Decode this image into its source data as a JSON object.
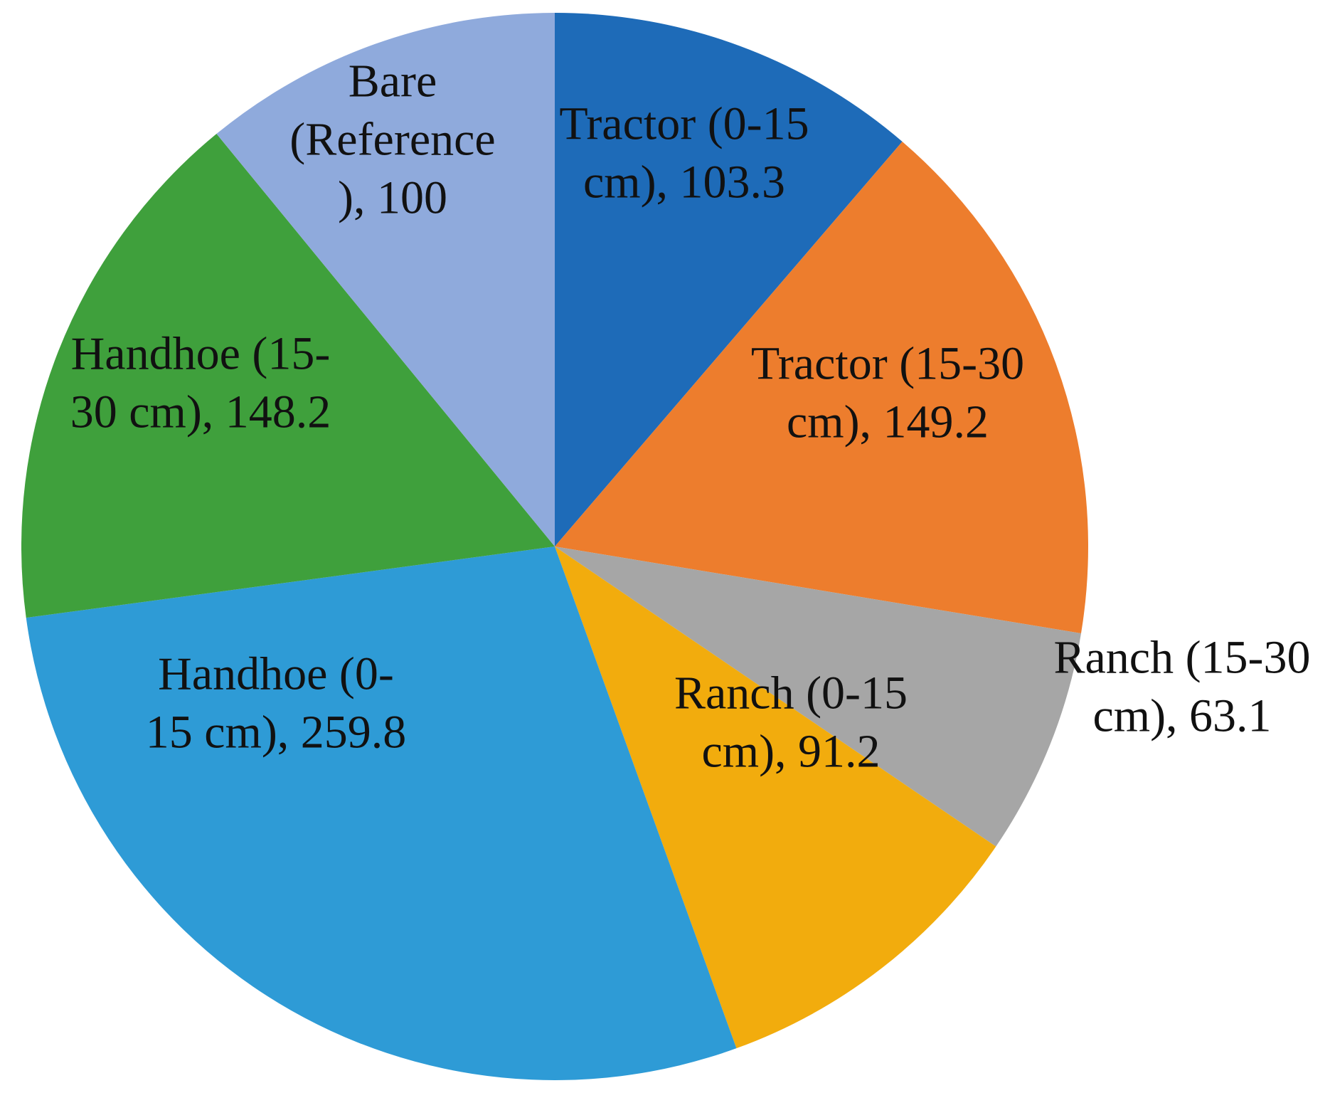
{
  "chart_data": {
    "type": "pie",
    "title": "",
    "legend_position": "none",
    "data_labels": "category-and-value",
    "start_angle_deg": 0,
    "direction": "clockwise",
    "text_color": "#111111",
    "background_color": "#ffffff",
    "total": 914.8,
    "categories": [
      "Tractor (0-15 cm)",
      "Tractor (15-30 cm)",
      "Ranch (15-30 cm)",
      "Ranch (0-15 cm)",
      "Handhoe (0-15 cm)",
      "Handhoe (15-30 cm)",
      "Bare (Reference)"
    ],
    "values": [
      103.3,
      149.2,
      63.1,
      91.2,
      259.8,
      148.2,
      100
    ],
    "slices": [
      {
        "label": "Tractor (0-15 cm)",
        "value": 103.3,
        "color": "#1E6BB8",
        "label_lines": [
          "Tractor (0-15",
          "cm), 103.3"
        ],
        "label_placement": "inside"
      },
      {
        "label": "Tractor (15-30 cm)",
        "value": 149.2,
        "color": "#ED7D2D",
        "label_lines": [
          "Tractor (15-30",
          "cm), 149.2"
        ],
        "label_placement": "inside"
      },
      {
        "label": "Ranch (15-30 cm)",
        "value": 63.1,
        "color": "#A6A6A6",
        "label_lines": [
          "Ranch (15-30",
          "cm), 63.1"
        ],
        "label_placement": "outside"
      },
      {
        "label": "Ranch (0-15 cm)",
        "value": 91.2,
        "color": "#F2AC0D",
        "label_lines": [
          "Ranch (0-15",
          "cm), 91.2"
        ],
        "label_placement": "inside"
      },
      {
        "label": "Handhoe (0-15 cm)",
        "value": 259.8,
        "color": "#2E9BD6",
        "label_lines": [
          "Handhoe (0-",
          "15 cm), 259.8"
        ],
        "label_placement": "inside"
      },
      {
        "label": "Handhoe (15-30 cm)",
        "value": 148.2,
        "color": "#3FA03C",
        "label_lines": [
          "Handhoe (15-",
          "30 cm), 148.2"
        ],
        "label_placement": "inside"
      },
      {
        "label": "Bare (Reference)",
        "value": 100,
        "color": "#8FAADC",
        "label_lines": [
          "Bare",
          "(Reference",
          "), 100"
        ],
        "label_placement": "inside"
      }
    ]
  }
}
